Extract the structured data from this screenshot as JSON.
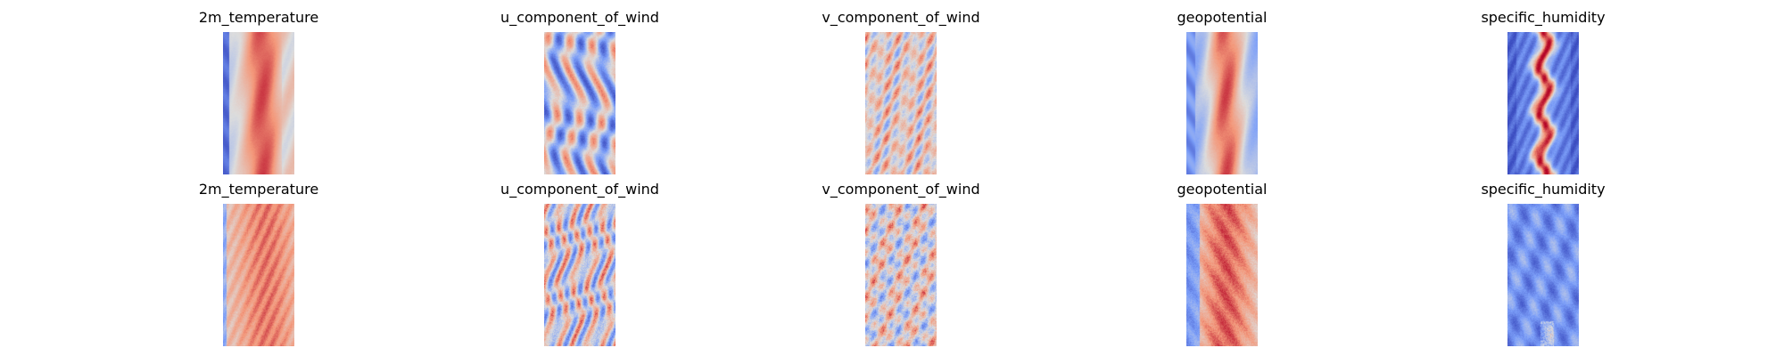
{
  "chart_data": [
    {
      "type": "heatmap",
      "title": "2m_temperature",
      "colormap": "coolwarm",
      "axes": "off",
      "pattern": "temperature"
    },
    {
      "type": "heatmap",
      "title": "u_component_of_wind",
      "colormap": "coolwarm",
      "axes": "off",
      "pattern": "wind-u"
    },
    {
      "type": "heatmap",
      "title": "v_component_of_wind",
      "colormap": "coolwarm",
      "axes": "off",
      "pattern": "wind-v"
    },
    {
      "type": "heatmap",
      "title": "geopotential",
      "colormap": "coolwarm",
      "axes": "off",
      "pattern": "geopotential"
    },
    {
      "type": "heatmap",
      "title": "specific_humidity",
      "colormap": "coolwarm",
      "axes": "off",
      "pattern": "humidity"
    },
    {
      "type": "heatmap",
      "title": "2m_temperature",
      "colormap": "coolwarm",
      "axes": "off",
      "pattern": "temperature-noisy"
    },
    {
      "type": "heatmap",
      "title": "u_component_of_wind",
      "colormap": "coolwarm",
      "axes": "off",
      "pattern": "wind-u-noisy"
    },
    {
      "type": "heatmap",
      "title": "v_component_of_wind",
      "colormap": "coolwarm",
      "axes": "off",
      "pattern": "wind-v-noisy"
    },
    {
      "type": "heatmap",
      "title": "geopotential",
      "colormap": "coolwarm",
      "axes": "off",
      "pattern": "geopotential-noisy"
    },
    {
      "type": "heatmap",
      "title": "specific_humidity",
      "colormap": "coolwarm",
      "axes": "off",
      "pattern": "humidity-noisy"
    }
  ]
}
